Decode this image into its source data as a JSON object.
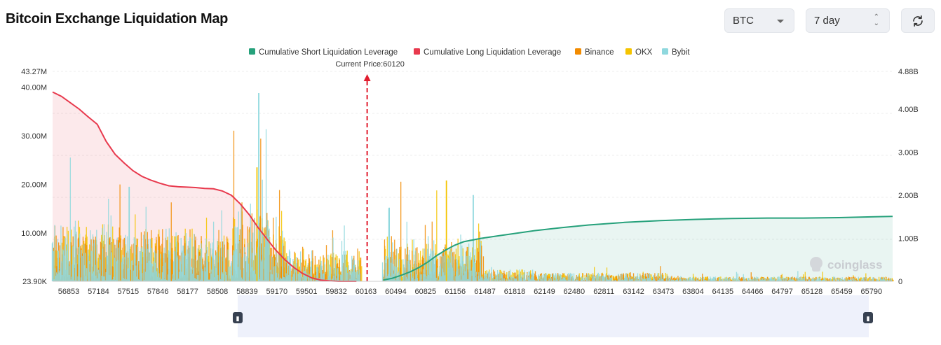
{
  "page": {
    "title": "Bitcoin Exchange Liquidation Map",
    "coin_select": {
      "value": "BTC"
    },
    "range_select": {
      "value": "7 day"
    },
    "refresh_icon": "refresh-icon",
    "watermark": "coinglass"
  },
  "chart_data": {
    "type": "bar",
    "legend": [
      {
        "name": "Cumulative Short Liquidation Leverage",
        "color": "#26a17b"
      },
      {
        "name": "Cumulative Long Liquidation Leverage",
        "color": "#e8394d"
      },
      {
        "name": "Binance",
        "color": "#f28b00"
      },
      {
        "name": "OKX",
        "color": "#f5c400"
      },
      {
        "name": "Bybit",
        "color": "#8fd8de"
      }
    ],
    "legend_position": "top-center",
    "current_price": 60120,
    "current_price_label": "Current Price:60120",
    "x_ticks": [
      56853,
      57184,
      57515,
      57846,
      58177,
      58508,
      58839,
      59170,
      59501,
      59832,
      60163,
      60494,
      60825,
      61156,
      61487,
      61818,
      62149,
      62480,
      62811,
      63142,
      63473,
      63804,
      64135,
      64466,
      64797,
      65128,
      65459,
      65790
    ],
    "x_range": [
      56600,
      66000
    ],
    "y_left": {
      "ticks": [
        "23.90K",
        "10.00M",
        "20.00M",
        "30.00M",
        "40.00M",
        "43.27M"
      ],
      "min": 0.0239,
      "max": 43.27,
      "unit": "M"
    },
    "y_right": {
      "ticks": [
        "0",
        "1.00B",
        "2.00B",
        "3.00B",
        "4.00B",
        "4.88B"
      ],
      "min": 0,
      "max": 4.88,
      "unit": "B"
    },
    "cumulative_long": {
      "name": "Cumulative Long Liquidation Leverage",
      "axis": "right",
      "x": [
        56600,
        56700,
        56800,
        56900,
        57000,
        57100,
        57200,
        57300,
        57400,
        57500,
        57600,
        57700,
        57800,
        57900,
        58000,
        58100,
        58200,
        58300,
        58400,
        58500,
        58600,
        58700,
        58800,
        58900,
        59000,
        59100,
        59200,
        59300,
        59400,
        59500,
        59600,
        59700,
        59800,
        59900,
        60000
      ],
      "values": [
        4.4,
        4.3,
        4.15,
        4.0,
        3.82,
        3.65,
        3.25,
        2.95,
        2.75,
        2.57,
        2.44,
        2.35,
        2.28,
        2.22,
        2.2,
        2.19,
        2.18,
        2.16,
        2.15,
        2.1,
        2.0,
        1.8,
        1.55,
        1.25,
        0.98,
        0.72,
        0.5,
        0.32,
        0.18,
        0.08,
        0.03,
        0.01,
        0.0,
        0.0,
        0.0
      ]
    },
    "cumulative_short": {
      "name": "Cumulative Short Liquidation Leverage",
      "axis": "right",
      "x": [
        60300,
        60400,
        60500,
        60600,
        60700,
        60800,
        60900,
        61000,
        61100,
        61200,
        61400,
        61600,
        61800,
        62000,
        62300,
        62600,
        63000,
        63400,
        63800,
        64200,
        64600,
        65000,
        65400,
        65800,
        66000
      ],
      "values": [
        0.03,
        0.07,
        0.14,
        0.22,
        0.32,
        0.45,
        0.6,
        0.73,
        0.84,
        0.92,
        1.0,
        1.06,
        1.12,
        1.18,
        1.25,
        1.31,
        1.37,
        1.41,
        1.44,
        1.46,
        1.47,
        1.47,
        1.48,
        1.5,
        1.51
      ]
    },
    "bars_note": "per-price liquidation bars by exchange (Binance, OKX, Bybit) on left axis",
    "bar_highlights": [
      {
        "x": 58900,
        "series": "Bybit",
        "value": 38.8
      },
      {
        "x": 58880,
        "series": "OKX",
        "value": 23.5
      },
      {
        "x": 61000,
        "series": "OKX",
        "value": 20.8
      },
      {
        "x": 61300,
        "series": "Bybit",
        "value": 17.8
      },
      {
        "x": 57450,
        "series": "Bybit",
        "value": 19.5
      },
      {
        "x": 60360,
        "series": "Bybit",
        "value": 15.2
      }
    ]
  }
}
